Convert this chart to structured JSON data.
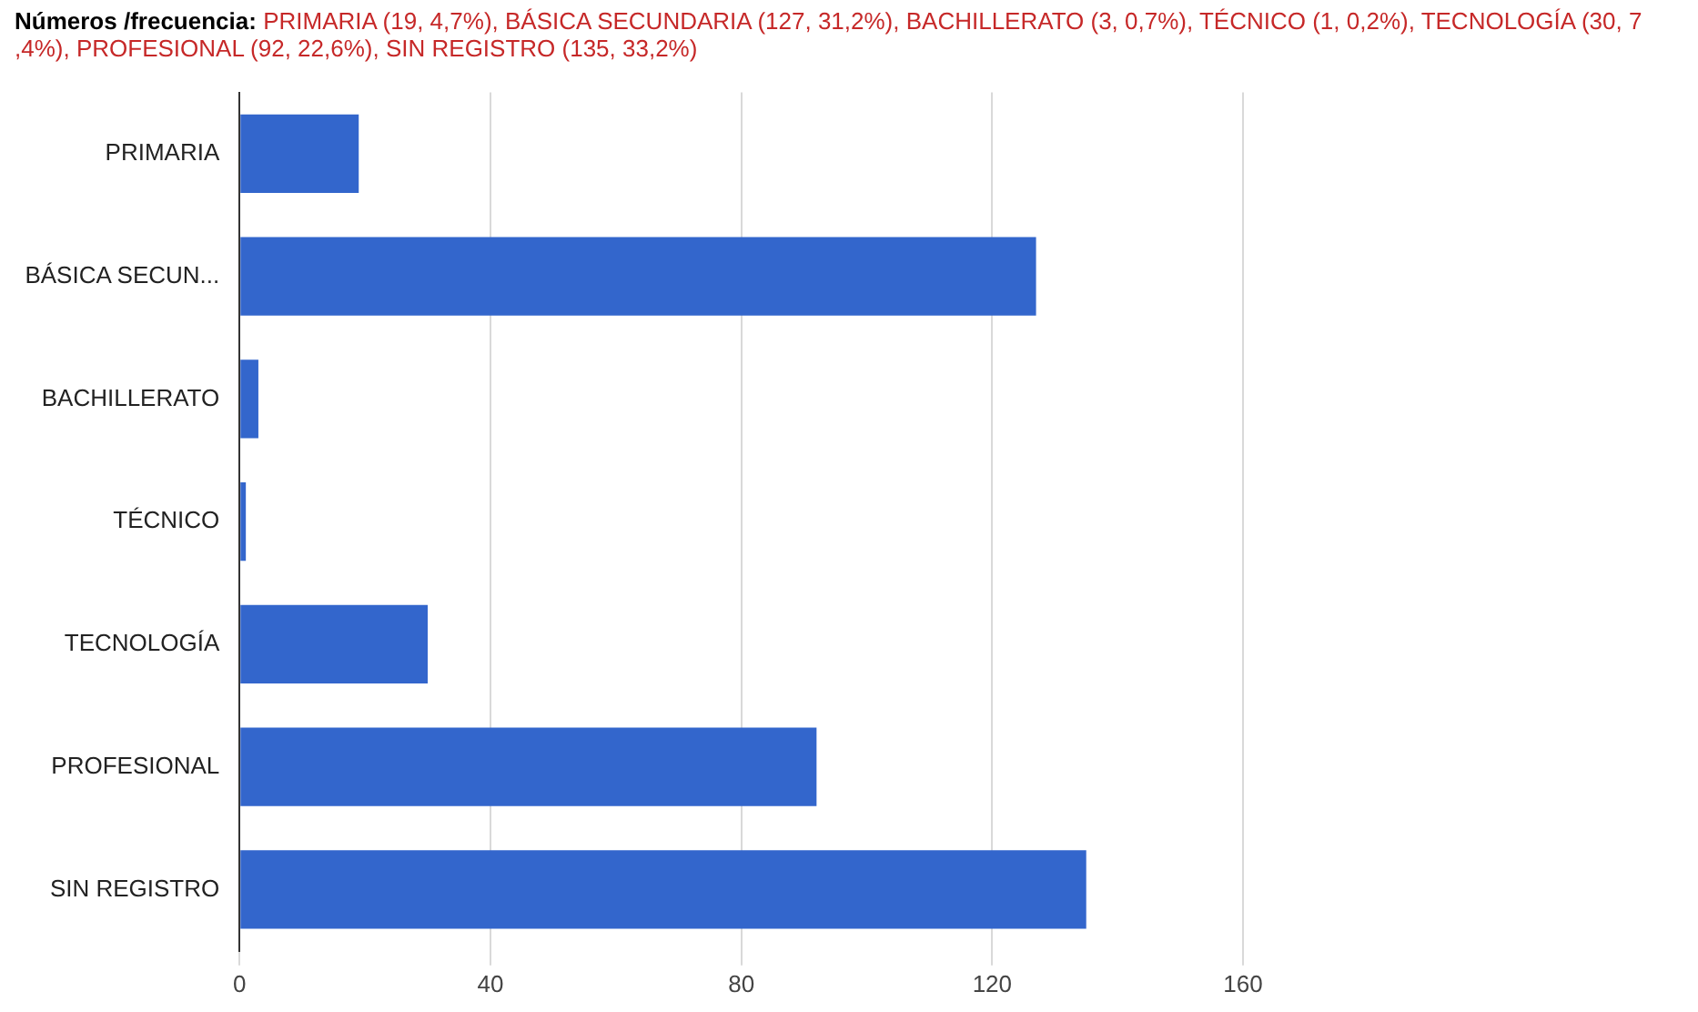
{
  "chart_data": {
    "type": "bar",
    "orientation": "horizontal",
    "title": "Números /frecuencia:",
    "subtitle": "PRIMARIA (19, 4,7%), BÁSICA SECUNDARIA (127, 31,2%), BACHILLERATO (3, 0,7%), TÉCNICO (1, 0,2%), TECNOLOGÍA (30, 7 ,4%), PROFESIONAL (92, 22,6%), SIN REGISTRO (135, 33,2%)",
    "categories": [
      "PRIMARIA",
      "BÁSICA SECUN...",
      "BACHILLERATO",
      "TÉCNICO",
      "TECNOLOGÍA",
      "PROFESIONAL",
      "SIN REGISTRO"
    ],
    "values": [
      19,
      127,
      3,
      1,
      30,
      92,
      135
    ],
    "color": "#3366cc",
    "xlim": [
      0,
      160
    ],
    "xticks": [
      0,
      40,
      80,
      120,
      160
    ],
    "grid": "x",
    "legend": false
  }
}
